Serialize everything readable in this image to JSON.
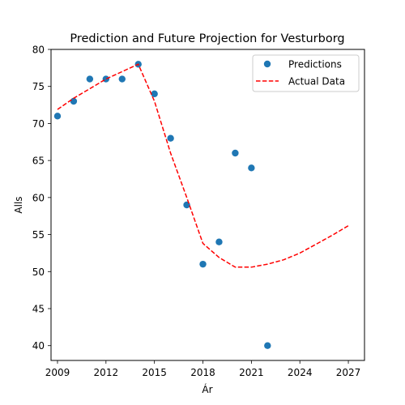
{
  "chart_data": {
    "type": "scatter",
    "title": "Prediction and Future Projection for Vesturborg",
    "xlabel": "Ár",
    "ylabel": "Alls",
    "xlim": [
      2008.6,
      2028.0
    ],
    "ylim": [
      38.0,
      80.0
    ],
    "xticks": [
      2009,
      2012,
      2015,
      2018,
      2021,
      2024,
      2027
    ],
    "yticks": [
      40,
      45,
      50,
      55,
      60,
      65,
      70,
      75,
      80
    ],
    "legend_position": "top-right",
    "series": [
      {
        "name": "Predictions",
        "kind": "scatter",
        "color": "#1f77b4",
        "x": [
          2009,
          2010,
          2011,
          2012,
          2013,
          2014,
          2015,
          2016,
          2017,
          2018,
          2019,
          2020,
          2021,
          2022
        ],
        "y": [
          71,
          73,
          76,
          76,
          76,
          78,
          74,
          68,
          59,
          51,
          54,
          66,
          64,
          40
        ]
      },
      {
        "name": "Actual Data",
        "kind": "line",
        "style": "dashed",
        "color": "#ff0000",
        "x": [
          2009,
          2010,
          2011,
          2012,
          2013,
          2014,
          2015,
          2016,
          2017,
          2018,
          2019,
          2020,
          2021,
          2022,
          2023,
          2024,
          2025,
          2026,
          2027
        ],
        "y": [
          71.9,
          73.4,
          74.7,
          76.0,
          77.0,
          78.0,
          73.0,
          66.0,
          60.0,
          53.8,
          51.9,
          50.6,
          50.6,
          51.0,
          51.6,
          52.5,
          53.7,
          54.9,
          56.2
        ]
      }
    ]
  }
}
